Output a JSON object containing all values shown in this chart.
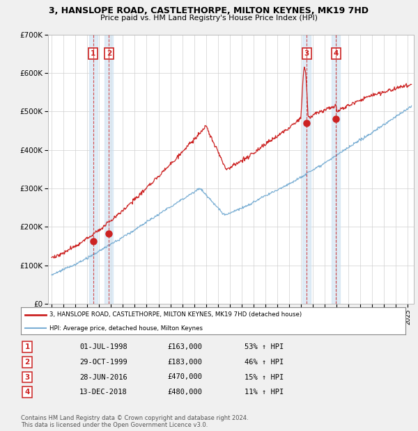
{
  "title": "3, HANSLOPE ROAD, CASTLETHORPE, MILTON KEYNES, MK19 7HD",
  "subtitle": "Price paid vs. HM Land Registry's House Price Index (HPI)",
  "legend_line1": "3, HANSLOPE ROAD, CASTLETHORPE, MILTON KEYNES, MK19 7HD (detached house)",
  "legend_line2": "HPI: Average price, detached house, Milton Keynes",
  "footer1": "Contains HM Land Registry data © Crown copyright and database right 2024.",
  "footer2": "This data is licensed under the Open Government Licence v3.0.",
  "transactions": [
    {
      "num": 1,
      "date": "01-JUL-1998",
      "price": 163000,
      "hpi_pct": "53%",
      "year": 1998.5
    },
    {
      "num": 2,
      "date": "29-OCT-1999",
      "price": 183000,
      "hpi_pct": "46%",
      "year": 1999.83
    },
    {
      "num": 3,
      "date": "28-JUN-2016",
      "price": 470000,
      "hpi_pct": "15%",
      "year": 2016.49
    },
    {
      "num": 4,
      "date": "13-DEC-2018",
      "price": 480000,
      "hpi_pct": "11%",
      "year": 2018.95
    }
  ],
  "hpi_color": "#7bafd4",
  "price_color": "#cc2222",
  "background_color": "#f0f0f0",
  "plot_bg": "#ffffff",
  "ylim": [
    0,
    700000
  ],
  "xlim_start": 1994.7,
  "xlim_end": 2025.5
}
